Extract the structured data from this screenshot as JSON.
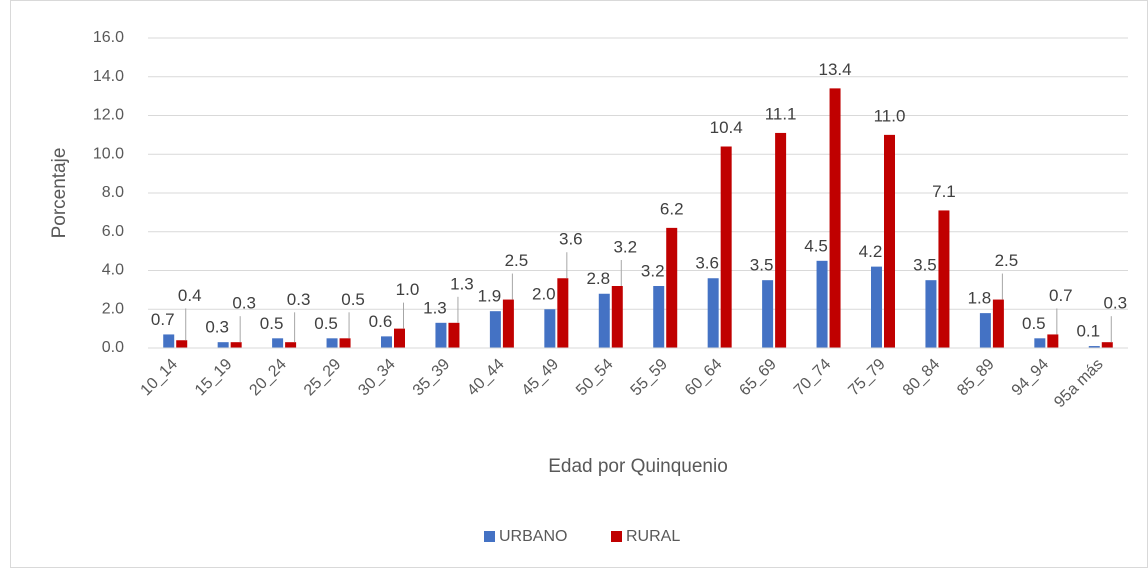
{
  "chart_data": {
    "type": "bar",
    "x_label": "Edad por Quinquenio",
    "y_label": "Porcentaje",
    "categories": [
      "10_14",
      "15_19",
      "20_24",
      "25_29",
      "30_34",
      "35_39",
      "40_44",
      "45_49",
      "50_54",
      "55_59",
      "60_64",
      "65_69",
      "70_74",
      "75_79",
      "80_84",
      "85_89",
      "94_94",
      "95a más"
    ],
    "series": [
      {
        "name": "URBANO",
        "color": "#4472c4",
        "values": [
          0.7,
          0.3,
          0.5,
          0.5,
          0.6,
          1.3,
          1.9,
          2.0,
          2.8,
          3.2,
          3.6,
          3.5,
          4.5,
          4.2,
          3.5,
          1.8,
          0.5,
          0.1
        ],
        "value_labels": [
          "0.7",
          "0.3",
          "0.5",
          "0.5",
          "0.6",
          "1.3",
          "1.9",
          "2.0",
          "2.8",
          "3.2",
          "3.6",
          "3.5",
          "4.5",
          "4.2",
          "3.5",
          "1.8",
          "0.5",
          "0.1"
        ]
      },
      {
        "name": "RURAL",
        "color": "#c00000",
        "values": [
          0.4,
          0.3,
          0.3,
          0.5,
          1.0,
          1.3,
          2.5,
          3.6,
          3.2,
          6.2,
          10.4,
          11.1,
          13.4,
          11.0,
          7.1,
          2.5,
          0.7,
          0.3
        ],
        "value_labels": [
          "0.4",
          "0.3",
          "0.3",
          "0.5",
          "1.0",
          "1.3",
          "2.5",
          "3.6",
          "3.2",
          "6.2",
          "10.4",
          "11.1",
          "13.4",
          "11.0",
          "7.1",
          "2.5",
          "0.7",
          "0.3"
        ]
      }
    ],
    "ylim": [
      0,
      16
    ],
    "yticks": [
      {
        "value": 0,
        "label": "0.0"
      },
      {
        "value": 2,
        "label": "2.0"
      },
      {
        "value": 4,
        "label": "4.0"
      },
      {
        "value": 6,
        "label": "6.0"
      },
      {
        "value": 8,
        "label": "8.0"
      },
      {
        "value": 10,
        "label": "10.0"
      },
      {
        "value": 12,
        "label": "12.0"
      },
      {
        "value": 14,
        "label": "14.0"
      },
      {
        "value": 16,
        "label": "16.0"
      }
    ],
    "grid": true,
    "legend": "bottom"
  }
}
